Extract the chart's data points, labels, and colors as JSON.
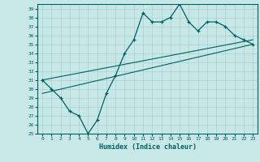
{
  "title": "",
  "xlabel": "Humidex (Indice chaleur)",
  "bg_color": "#c8e8e8",
  "line_color": "#006060",
  "grid_color": "#a8d0d0",
  "xlim": [
    -0.5,
    23.5
  ],
  "ylim": [
    25,
    39.5
  ],
  "yticks": [
    25,
    26,
    27,
    28,
    29,
    30,
    31,
    32,
    33,
    34,
    35,
    36,
    37,
    38,
    39
  ],
  "xticks": [
    0,
    1,
    2,
    3,
    4,
    5,
    6,
    7,
    8,
    9,
    10,
    11,
    12,
    13,
    14,
    15,
    16,
    17,
    18,
    19,
    20,
    21,
    22,
    23
  ],
  "curve_x": [
    0,
    1,
    2,
    3,
    4,
    5,
    6,
    7,
    8,
    9,
    10,
    11,
    12,
    13,
    14,
    15,
    16,
    17,
    18,
    19,
    20,
    21,
    22,
    23
  ],
  "curve_y": [
    31.0,
    30.0,
    29.0,
    27.5,
    27.0,
    25.0,
    26.5,
    29.5,
    31.5,
    34.0,
    35.5,
    38.5,
    37.5,
    37.5,
    38.0,
    39.5,
    37.5,
    36.5,
    37.5,
    37.5,
    37.0,
    36.0,
    35.5,
    35.0
  ],
  "line1_x": [
    0,
    23
  ],
  "line1_y": [
    31.0,
    35.5
  ],
  "line2_x": [
    0,
    23
  ],
  "line2_y": [
    29.5,
    35.0
  ]
}
